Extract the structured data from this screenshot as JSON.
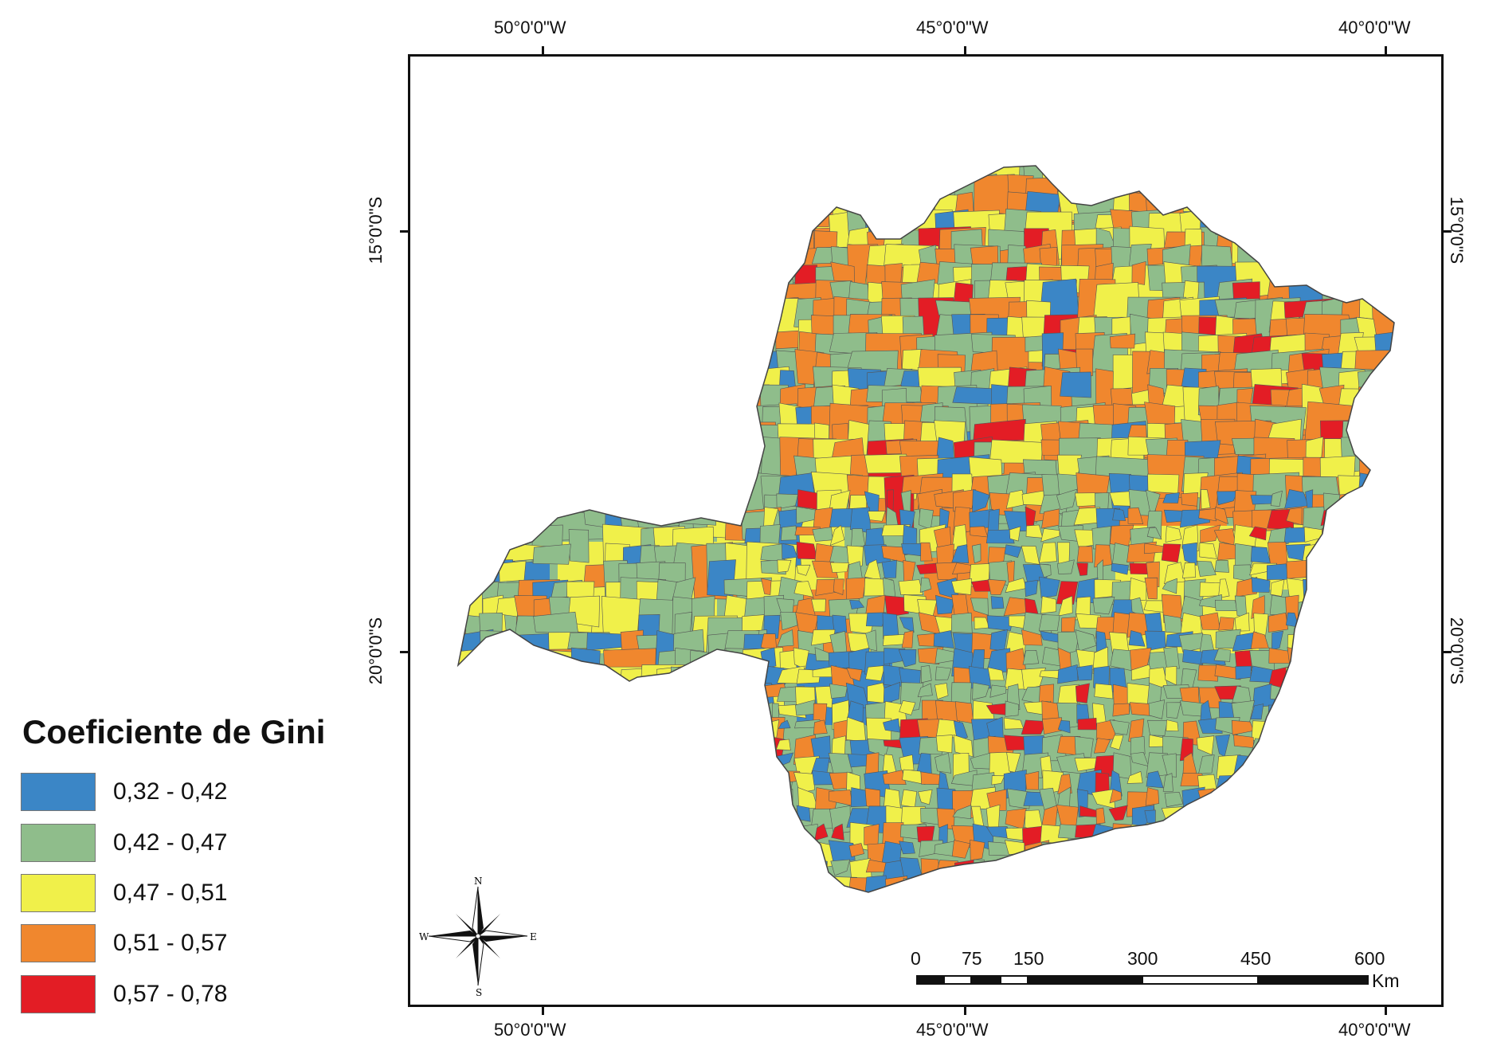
{
  "map": {
    "lon_labels": [
      "50°0'0\"W",
      "45°0'0\"W",
      "40°0'0\"W"
    ],
    "lat_labels": [
      "15°0'0\"S",
      "20°0'0\"S"
    ]
  },
  "legend": {
    "title": "Coeficiente de Gini",
    "items": [
      {
        "label": "0,32 - 0,42",
        "color": "#3b86c6"
      },
      {
        "label": "0,42 - 0,47",
        "color": "#8fbd8b"
      },
      {
        "label": "0,47 - 0,51",
        "color": "#f0f04a"
      },
      {
        "label": "0,51 - 0,57",
        "color": "#f0872e"
      },
      {
        "label": "0,57 - 0,78",
        "color": "#e31d25"
      }
    ]
  },
  "north_arrow": {
    "n": "N",
    "s": "S",
    "e": "E",
    "w": "W"
  },
  "scale_bar": {
    "ticks": [
      "0",
      "75",
      "150",
      "300",
      "450",
      "600"
    ],
    "unit": "Km"
  }
}
